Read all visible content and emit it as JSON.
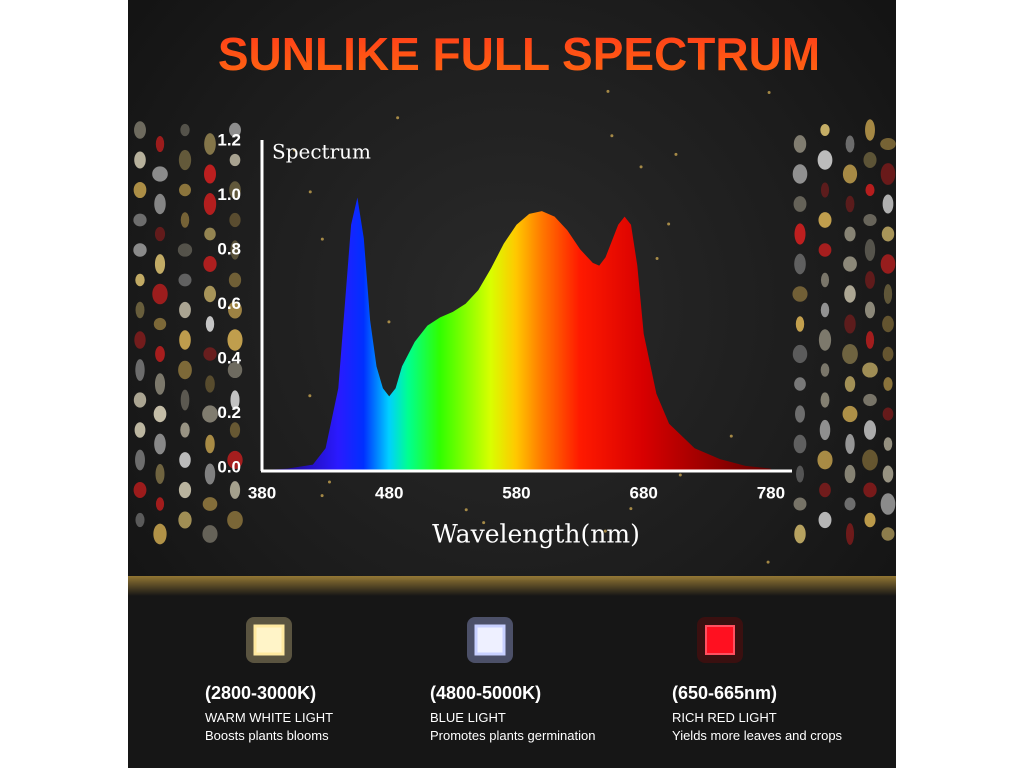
{
  "chart_data": {
    "type": "area",
    "title": "SUNLIKE FULL SPECTRUM",
    "y_label": "Spectrum",
    "x_label": "Wavelength(nm)",
    "x": [
      380,
      400,
      420,
      430,
      440,
      445,
      450,
      455,
      460,
      465,
      470,
      475,
      480,
      485,
      490,
      500,
      510,
      520,
      530,
      540,
      550,
      560,
      570,
      580,
      590,
      600,
      610,
      620,
      630,
      640,
      645,
      650,
      660,
      665,
      670,
      675,
      680,
      690,
      700,
      720,
      740,
      760,
      780
    ],
    "values": [
      0,
      0.005,
      0.02,
      0.08,
      0.3,
      0.6,
      0.9,
      1.0,
      0.85,
      0.55,
      0.38,
      0.3,
      0.27,
      0.3,
      0.38,
      0.47,
      0.53,
      0.56,
      0.58,
      0.61,
      0.66,
      0.74,
      0.83,
      0.9,
      0.94,
      0.95,
      0.93,
      0.88,
      0.81,
      0.76,
      0.75,
      0.78,
      0.9,
      0.93,
      0.9,
      0.75,
      0.5,
      0.28,
      0.17,
      0.08,
      0.04,
      0.015,
      0.005
    ],
    "xlim": [
      380,
      795
    ],
    "ylim": [
      0,
      1.2
    ],
    "xticks": [
      380,
      480,
      580,
      680,
      780
    ],
    "yticks": [
      {
        "value": 0,
        "label": "0.0"
      },
      0.2,
      0.4,
      0.6,
      0.8,
      {
        "value": 1,
        "label": "1.0"
      },
      1.2
    ],
    "grid": false
  },
  "features": [
    {
      "range": "(2800-3000K)",
      "label": "WARM WHITE LIGHT",
      "description": "Boosts plants blooms"
    },
    {
      "range": "(4800-5000K)",
      "label": "BLUE LIGHT",
      "description": "Promotes plants germination"
    },
    {
      "range": "(650-665nm)",
      "label": "RICH RED LIGHT",
      "description": "Yields more leaves and crops"
    }
  ]
}
